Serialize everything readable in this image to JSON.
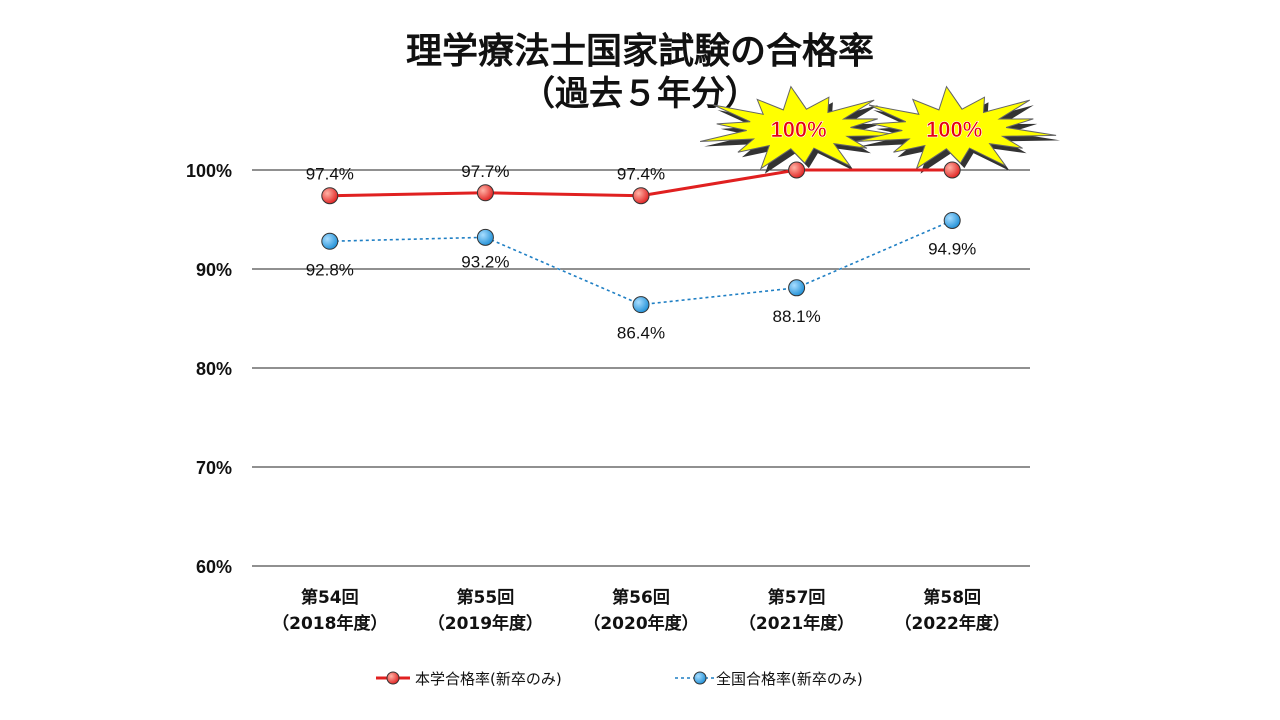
{
  "chart_data": {
    "type": "line",
    "title": "理学療法士国家試験の合格率",
    "subtitle": "（過去５年分）",
    "categories": [
      [
        "第54回",
        "（2018年度）"
      ],
      [
        "第55回",
        "（2019年度）"
      ],
      [
        "第56回",
        "（2020年度）"
      ],
      [
        "第57回",
        "（2021年度）"
      ],
      [
        "第58回",
        "（2022年度）"
      ]
    ],
    "ylim": [
      60,
      100
    ],
    "yticks": [
      "100%",
      "90%",
      "80%",
      "70%",
      "60%"
    ],
    "grid": true,
    "legend_position": "bottom",
    "series": [
      {
        "name": "本学合格率(新卒のみ)",
        "values": [
          97.4,
          97.7,
          97.4,
          100,
          100
        ],
        "labels": [
          "97.4%",
          "97.7%",
          "97.4%",
          "",
          ""
        ],
        "color": "#e02020",
        "style": "solid"
      },
      {
        "name": "全国合格率(新卒のみ)",
        "values": [
          92.8,
          93.2,
          86.4,
          88.1,
          94.9
        ],
        "labels": [
          "92.8%",
          "93.2%",
          "86.4%",
          "88.1%",
          "94.9%"
        ],
        "color": "#1f7fc4",
        "style": "dotted"
      }
    ],
    "annotations": [
      {
        "category_index": 3,
        "text": "100%",
        "shape": "starburst",
        "fill": "#ffff00",
        "text_color": "#e60012"
      },
      {
        "category_index": 4,
        "text": "100%",
        "shape": "starburst",
        "fill": "#ffff00",
        "text_color": "#e60012"
      }
    ]
  }
}
